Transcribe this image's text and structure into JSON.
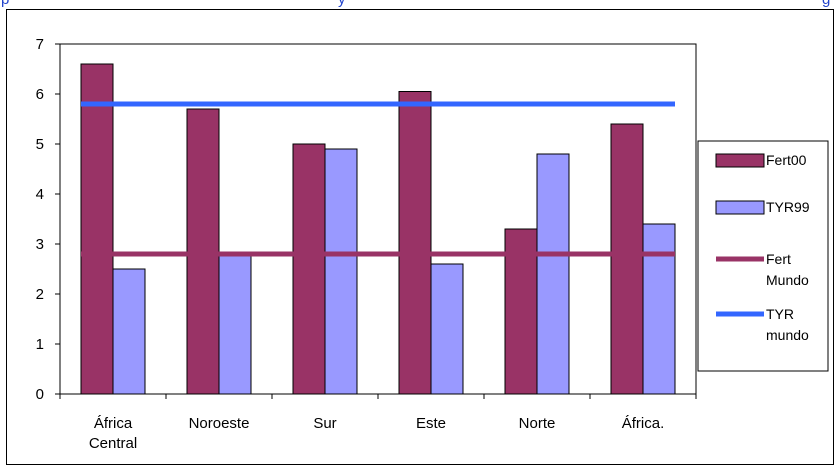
{
  "top_strip": {
    "left_text": "p",
    "mid_text": "y",
    "right_text": "g"
  },
  "chart_data": {
    "type": "bar",
    "categories": [
      [
        "África",
        "Central"
      ],
      [
        "Noroeste"
      ],
      [
        "Sur"
      ],
      [
        "Este"
      ],
      [
        "Norte"
      ],
      [
        "África."
      ]
    ],
    "series": [
      {
        "name": "Fert00",
        "values": [
          6.6,
          5.7,
          5.0,
          6.05,
          3.3,
          5.4
        ],
        "color": "#993366"
      },
      {
        "name": "TYR99",
        "values": [
          2.5,
          2.8,
          4.9,
          2.6,
          4.8,
          3.4
        ],
        "color": "#9999ff"
      }
    ],
    "reference_lines": [
      {
        "name": [
          "Fert",
          "Mundo"
        ],
        "value": 2.8,
        "color": "#993366"
      },
      {
        "name": [
          "TYR",
          "mundo"
        ],
        "value": 5.8,
        "color": "#3366ff"
      }
    ],
    "yticks": [
      "0",
      "1",
      "2",
      "3",
      "4",
      "5",
      "6",
      "7"
    ],
    "ylim": [
      0,
      7
    ],
    "grid": false,
    "legend_position": "right"
  }
}
